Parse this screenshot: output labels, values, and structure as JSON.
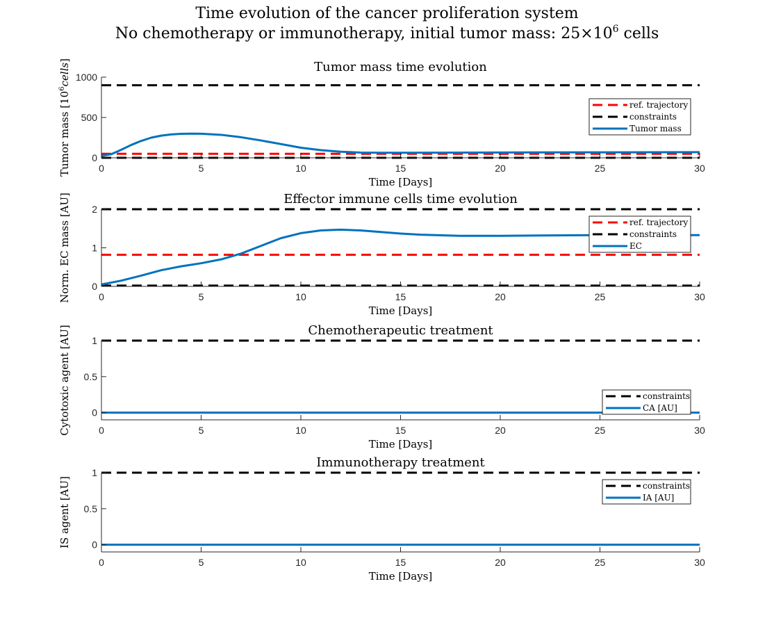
{
  "figure": {
    "title_line1": "Time evolution of the cancer proliferation system",
    "title_line2_prefix": "No chemotherapy or immunotherapy, initial tumor mass: 25",
    "title_line2_times": "×",
    "title_line2_base": "10",
    "title_line2_exp": "6",
    "title_line2_suffix": " cells"
  },
  "colors": {
    "series_blue": "#0072BD",
    "ref_red": "#FF0000",
    "constraint_black": "#000000",
    "axis": "#262626"
  },
  "chart_data": [
    {
      "type": "line",
      "title": "Tumor mass time evolution",
      "xlabel": "Time [Days]",
      "ylabel_prefix": "Tumor mass [10",
      "ylabel_exp": "6",
      "ylabel_italic": "cells",
      "ylabel_suffix": "]",
      "xlim": [
        0,
        30
      ],
      "ylim": [
        0,
        1000
      ],
      "xticks": [
        0,
        5,
        10,
        15,
        20,
        25,
        30
      ],
      "yticks": [
        0,
        500,
        1000
      ],
      "legend": {
        "placement": "right",
        "entries": [
          "ref. trajectory",
          "constraints",
          "Tumor mass"
        ]
      },
      "series": [
        {
          "name": "ref. trajectory",
          "style": "dashed",
          "color": "#FF0000",
          "x": [
            0,
            30
          ],
          "y": [
            50,
            50
          ]
        },
        {
          "name": "constraints",
          "style": "dashed",
          "color": "#000000",
          "x": [
            0,
            30
          ],
          "y": [
            900,
            900
          ]
        },
        {
          "name": "",
          "style": "dashed",
          "color": "#000000",
          "x": [
            0,
            30
          ],
          "y": [
            0,
            0
          ]
        },
        {
          "name": "Tumor mass",
          "style": "solid",
          "color": "#0072BD",
          "x": [
            0,
            0.5,
            1,
            1.5,
            2,
            2.5,
            3,
            3.5,
            4,
            4.5,
            5,
            6,
            7,
            8,
            9,
            10,
            11,
            12,
            13,
            14,
            15,
            17,
            20,
            25,
            30
          ],
          "y": [
            25,
            45,
            100,
            160,
            210,
            250,
            275,
            290,
            297,
            300,
            298,
            285,
            255,
            215,
            170,
            125,
            95,
            75,
            65,
            62,
            62,
            64,
            66,
            68,
            70
          ]
        }
      ]
    },
    {
      "type": "line",
      "title": "Effector immune cells time evolution",
      "xlabel": "Time [Days]",
      "ylabel": "Norm. EC mass [AU]",
      "xlim": [
        0,
        30
      ],
      "ylim": [
        0,
        2
      ],
      "xticks": [
        0,
        5,
        10,
        15,
        20,
        25,
        30
      ],
      "yticks": [
        0,
        1,
        2
      ],
      "legend": {
        "placement": "right",
        "entries": [
          "ref. trajectory",
          "constraints",
          "EC"
        ]
      },
      "series": [
        {
          "name": "ref. trajectory",
          "style": "dashed",
          "color": "#FF0000",
          "x": [
            0,
            30
          ],
          "y": [
            0.82,
            0.82
          ]
        },
        {
          "name": "constraints",
          "style": "dashed",
          "color": "#000000",
          "x": [
            0,
            30
          ],
          "y": [
            2,
            2
          ]
        },
        {
          "name": "",
          "style": "dashed",
          "color": "#000000",
          "x": [
            0,
            30
          ],
          "y": [
            0.02,
            0.02
          ]
        },
        {
          "name": "EC",
          "style": "solid",
          "color": "#0072BD",
          "x": [
            0,
            1,
            2,
            3,
            4,
            5,
            6,
            7,
            8,
            9,
            10,
            11,
            12,
            13,
            14,
            15,
            16,
            18,
            20,
            22,
            25,
            28,
            30
          ],
          "y": [
            0.05,
            0.15,
            0.28,
            0.42,
            0.52,
            0.6,
            0.7,
            0.85,
            1.05,
            1.25,
            1.38,
            1.45,
            1.47,
            1.45,
            1.41,
            1.37,
            1.34,
            1.31,
            1.31,
            1.32,
            1.33,
            1.33,
            1.33
          ]
        }
      ]
    },
    {
      "type": "line",
      "title": "Chemotherapeutic treatment",
      "xlabel": "Time [Days]",
      "ylabel": "Cytotoxic agent [AU]",
      "xlim": [
        0,
        30
      ],
      "ylim": [
        -0.1,
        1
      ],
      "xticks": [
        0,
        5,
        10,
        15,
        20,
        25,
        30
      ],
      "yticks": [
        0,
        0.5,
        1
      ],
      "legend": {
        "placement": "bottom-right",
        "entries": [
          "constraints",
          "CA [AU]"
        ]
      },
      "series": [
        {
          "name": "constraints",
          "style": "dashed",
          "color": "#000000",
          "x": [
            0,
            30
          ],
          "y": [
            1,
            1
          ]
        },
        {
          "name": "CA [AU]",
          "style": "solid",
          "color": "#0072BD",
          "x": [
            0,
            30
          ],
          "y": [
            0,
            0
          ]
        }
      ]
    },
    {
      "type": "line",
      "title": "Immunotherapy treatment",
      "xlabel": "Time [Days]",
      "ylabel": "IS agent [AU]",
      "xlim": [
        0,
        30
      ],
      "ylim": [
        -0.1,
        1
      ],
      "xticks": [
        0,
        5,
        10,
        15,
        20,
        25,
        30
      ],
      "yticks": [
        0,
        0.5,
        1
      ],
      "legend": {
        "placement": "top-right",
        "entries": [
          "constraints",
          "IA [AU]"
        ]
      },
      "series": [
        {
          "name": "constraints",
          "style": "dashed",
          "color": "#000000",
          "x": [
            0,
            30
          ],
          "y": [
            1,
            1
          ]
        },
        {
          "name": "IA [AU]",
          "style": "solid",
          "color": "#0072BD",
          "x": [
            0,
            30
          ],
          "y": [
            0,
            0
          ]
        }
      ]
    }
  ]
}
